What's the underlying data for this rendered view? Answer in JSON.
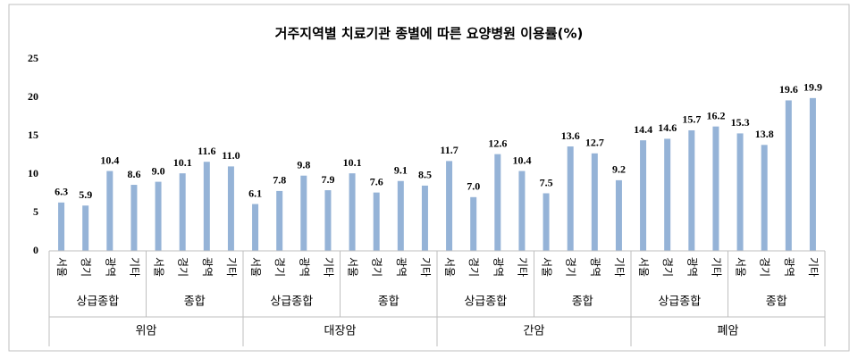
{
  "chart_data": {
    "type": "bar",
    "title": "거주지역별 치료기관 종별에 따른 요양병원 이용률(%)",
    "categories": [
      "서울",
      "경기",
      "광역",
      "기타",
      "서울",
      "경기",
      "광역",
      "기타",
      "서울",
      "경기",
      "광역",
      "기타",
      "서울",
      "경기",
      "광역",
      "기타",
      "서울",
      "경기",
      "광역",
      "기타",
      "서울",
      "경기",
      "광역",
      "기타",
      "서울",
      "경기",
      "광역",
      "기타",
      "서울",
      "경기",
      "광역",
      "기타"
    ],
    "subgroups": [
      "상급종합",
      "종합",
      "상급종합",
      "종합",
      "상급종합",
      "종합",
      "상급종합",
      "종합"
    ],
    "groups": [
      "위암",
      "대장암",
      "간암",
      "폐암"
    ],
    "values": [
      6.3,
      5.9,
      10.4,
      8.6,
      9.0,
      10.1,
      11.6,
      11.0,
      6.1,
      7.8,
      9.8,
      7.9,
      10.1,
      7.6,
      9.1,
      8.5,
      11.7,
      7.0,
      12.6,
      10.4,
      7.5,
      13.6,
      12.7,
      9.2,
      14.4,
      14.6,
      15.7,
      16.2,
      15.3,
      13.8,
      19.6,
      19.9
    ],
    "value_labels": [
      "6.3",
      "5.9",
      "10.4",
      "8.6",
      "9.0",
      "10.1",
      "11.6",
      "11.0",
      "6.1",
      "7.8",
      "9.8",
      "7.9",
      "10.1",
      "7.6",
      "9.1",
      "8.5",
      "11.7",
      "7.0",
      "12.6",
      "10.4",
      "7.5",
      "13.6",
      "12.7",
      "9.2",
      "14.4",
      "14.6",
      "15.7",
      "16.2",
      "15.3",
      "13.8",
      "19.6",
      "19.9"
    ],
    "color": "#95b3d7",
    "ylim": [
      0,
      25
    ],
    "yticks": [
      0,
      5,
      10,
      15,
      20,
      25
    ],
    "grid": false
  }
}
